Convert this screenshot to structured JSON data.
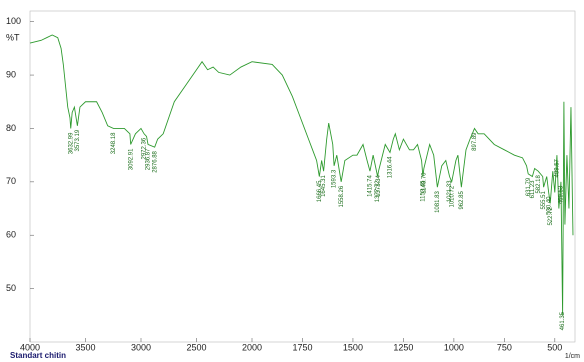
{
  "chart_data": {
    "type": "line",
    "y_label": "%T",
    "x_label": "1/cm",
    "sample_name": "Standart chitin",
    "color": "#2e9a2e",
    "xlim": [
      4000,
      400
    ],
    "x_scale_change": 2000,
    "ylim": [
      40,
      102
    ],
    "xticks": [
      4000,
      3500,
      3000,
      2500,
      2000,
      1750,
      1500,
      1250,
      1000,
      750,
      500
    ],
    "yticks": [
      50,
      60,
      70,
      80,
      90,
      100
    ],
    "x": [
      4000,
      3900,
      3850,
      3800,
      3750,
      3720,
      3700,
      3680,
      3660,
      3640,
      3632.99,
      3620,
      3600,
      3573.19,
      3550,
      3500,
      3450,
      3400,
      3350,
      3300,
      3248.18,
      3200,
      3150,
      3100,
      3092.91,
      3050,
      3000,
      2972.36,
      2950,
      2936.87,
      2876.88,
      2850,
      2800,
      2750,
      2700,
      2600,
      2500,
      2450,
      2400,
      2350,
      2300,
      2200,
      2100,
      2000,
      1900,
      1850,
      1800,
      1760,
      1720,
      1700,
      1680,
      1666.45,
      1655,
      1645.31,
      1630,
      1620,
      1600,
      1593.3,
      1580,
      1558.26,
      1540,
      1500,
      1480,
      1450,
      1430,
      1415.74,
      1400,
      1377.72,
      1373.34,
      1360,
      1340,
      1316.44,
      1300,
      1290,
      1270,
      1250,
      1220,
      1200,
      1180,
      1160,
      1153.45,
      1148.7,
      1120,
      1100,
      1081.83,
      1060,
      1040,
      1021.33,
      1010.72,
      990,
      980,
      962.85,
      940,
      920,
      897.89,
      880,
      850,
      800,
      750,
      700,
      660,
      640,
      631.79,
      611.23,
      600,
      582.18,
      560,
      555.51,
      540,
      530.4,
      522.72,
      510,
      500,
      489.57,
      480,
      469.53,
      461.35,
      455,
      450,
      440,
      430,
      420,
      410
    ],
    "values": [
      96,
      96.5,
      97,
      97.5,
      97,
      95,
      92,
      88,
      84,
      82,
      80,
      83,
      84,
      80.5,
      84,
      85,
      85,
      85,
      83,
      80.5,
      80,
      80,
      80,
      79,
      77,
      79,
      80,
      79,
      78.5,
      77,
      76.5,
      78,
      79,
      82,
      85,
      88,
      91,
      92.5,
      91,
      91.5,
      90.5,
      90,
      91.5,
      92.5,
      92,
      90,
      86,
      82,
      78,
      76,
      74,
      71,
      74,
      72,
      78,
      81,
      77,
      73,
      75,
      70,
      74,
      75,
      75,
      77,
      74,
      72,
      75,
      71,
      72,
      74,
      77,
      75.5,
      78,
      79,
      76,
      78,
      76,
      76,
      77,
      74,
      71,
      72.5,
      77,
      75,
      69,
      73,
      74,
      71,
      70,
      74,
      75,
      69,
      76,
      78,
      80,
      79,
      79,
      77,
      76,
      75,
      74.5,
      73,
      71.5,
      71,
      72.5,
      72,
      71,
      69,
      71,
      68,
      66,
      72,
      68,
      75,
      65,
      70,
      45,
      85,
      62,
      75,
      65,
      84,
      60
    ],
    "annotations": [
      "3632.99",
      "3573.19",
      "3248.18",
      "3092.91",
      "2972.36",
      "2936.87",
      "2876.88",
      "1666.45",
      "1645.31",
      "1593.3",
      "1558.26",
      "1415.74",
      "1377.72",
      "1373.34",
      "1316.44",
      "1153.45",
      "1148.70",
      "1081.83",
      "1021.33",
      "1010.72",
      "962.85",
      "897.89",
      "631.79",
      "611.23",
      "582.18",
      "555.51",
      "530.40",
      "522.72",
      "489.57",
      "469.53",
      "461.35"
    ]
  }
}
